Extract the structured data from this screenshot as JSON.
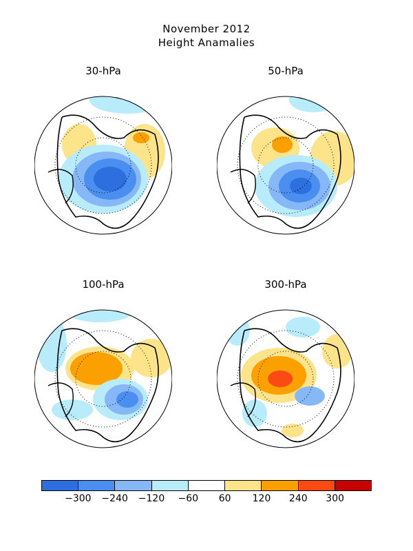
{
  "header": {
    "title": "November 2012",
    "subtitle": "Height Anamalies"
  },
  "panels": [
    {
      "label": "30-hPa"
    },
    {
      "label": "50-hPa"
    },
    {
      "label": "100-hPa"
    },
    {
      "label": "300-hPa"
    }
  ],
  "colorbar": {
    "colors": [
      "#2e6fe0",
      "#4a8ef0",
      "#86b8f8",
      "#b8ecfb",
      "#ffffff",
      "#fde48a",
      "#fca000",
      "#fb4a14",
      "#c80000"
    ],
    "labels": [
      "-300",
      "-240",
      "-120",
      "-60",
      "60",
      "120",
      "240",
      "300"
    ]
  }
}
